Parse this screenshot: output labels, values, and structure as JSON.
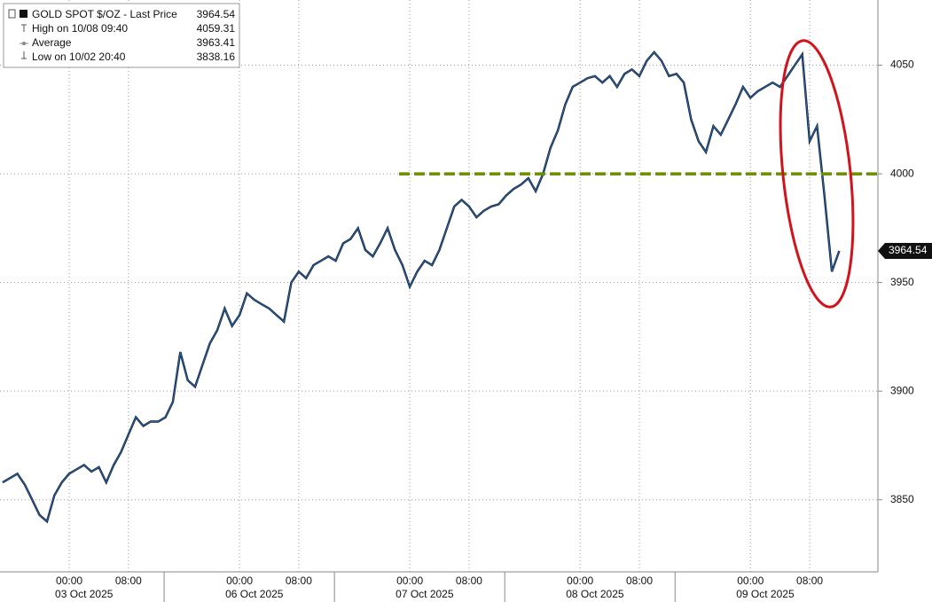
{
  "chart_data": {
    "type": "line",
    "legend": [
      {
        "label": "GOLD SPOT $/OZ - Last Price",
        "value": 3964.54
      },
      {
        "label": "High on 10/08 09:40",
        "value": 4059.31
      },
      {
        "label": "Average",
        "value": 3963.41
      },
      {
        "label": "Low on 10/02 20:40",
        "value": 3838.16
      }
    ],
    "x": [
      "10/02 14:00",
      "10/02 15:00",
      "10/02 16:00",
      "10/02 18:00",
      "10/02 19:00",
      "10/02 20:00",
      "10/02 21:00",
      "10/02 22:00",
      "10/02 23:00",
      "10/03 00:00",
      "10/03 01:00",
      "10/03 02:00",
      "10/03 03:00",
      "10/03 04:00",
      "10/03 05:00",
      "10/03 06:00",
      "10/03 07:00",
      "10/03 08:00",
      "10/03 09:00",
      "10/03 10:00",
      "10/03 11:00",
      "10/03 12:00",
      "10/03 13:00",
      "10/03 14:00",
      "10/03 15:00",
      "10/03 16:00",
      "10/05 18:00",
      "10/05 19:00",
      "10/05 20:00",
      "10/05 21:00",
      "10/05 22:00",
      "10/05 23:00",
      "10/06 00:00",
      "10/06 01:00",
      "10/06 02:00",
      "10/06 03:00",
      "10/06 04:00",
      "10/06 05:00",
      "10/06 06:00",
      "10/06 07:00",
      "10/06 08:00",
      "10/06 09:00",
      "10/06 10:00",
      "10/06 11:00",
      "10/06 12:00",
      "10/06 13:00",
      "10/06 14:00",
      "10/06 15:00",
      "10/06 16:00",
      "10/06 18:00",
      "10/06 19:00",
      "10/06 20:00",
      "10/06 21:00",
      "10/06 22:00",
      "10/06 23:00",
      "10/07 00:00",
      "10/07 01:00",
      "10/07 02:00",
      "10/07 03:00",
      "10/07 04:00",
      "10/07 05:00",
      "10/07 06:00",
      "10/07 07:00",
      "10/07 08:00",
      "10/07 09:00",
      "10/07 10:00",
      "10/07 11:00",
      "10/07 12:00",
      "10/07 13:00",
      "10/07 14:00",
      "10/07 15:00",
      "10/07 16:00",
      "10/07 18:00",
      "10/07 19:00",
      "10/07 20:00",
      "10/07 21:00",
      "10/07 22:00",
      "10/07 23:00",
      "10/08 00:00",
      "10/08 01:00",
      "10/08 02:00",
      "10/08 03:00",
      "10/08 04:00",
      "10/08 05:00",
      "10/08 06:00",
      "10/08 07:00",
      "10/08 08:00",
      "10/08 09:00",
      "10/08 10:00",
      "10/08 11:00",
      "10/08 12:00",
      "10/08 13:00",
      "10/08 14:00",
      "10/08 15:00",
      "10/08 16:00",
      "10/08 18:00",
      "10/08 19:00",
      "10/08 20:00",
      "10/08 21:00",
      "10/08 22:00",
      "10/08 23:00",
      "10/09 00:00",
      "10/09 01:00",
      "10/09 02:00",
      "10/09 03:00",
      "10/09 04:00",
      "10/09 05:00",
      "10/09 06:00",
      "10/09 07:00",
      "10/09 08:00",
      "10/09 09:00",
      "10/09 10:00",
      "10/09 11:00",
      "10/09 12:00"
    ],
    "series": [
      {
        "color": "#2463b0",
        "values": [
          3858,
          3860,
          3862,
          3857,
          3850,
          3843,
          3840,
          3852,
          3858,
          3862,
          3864,
          3866,
          3863,
          3865,
          3858,
          3866,
          3872,
          3880,
          3888,
          3884,
          3886,
          3886,
          3888,
          3895,
          3918,
          3905,
          3902,
          3912,
          3922,
          3928,
          3938,
          3930,
          3935,
          3945,
          3942,
          3940,
          3938,
          3935,
          3932,
          3950,
          3955,
          3952,
          3958,
          3960,
          3962,
          3960,
          3968,
          3970,
          3975,
          3965,
          3962,
          3968,
          3975,
          3965,
          3958,
          3948,
          3955,
          3960,
          3958,
          3965,
          3975,
          3985,
          3988,
          3985,
          3980,
          3983,
          3985,
          3986,
          3990,
          3993,
          3995,
          3998,
          3992,
          4000,
          4012,
          4020,
          4032,
          4040,
          4042,
          4044,
          4045,
          4042,
          4045,
          4040,
          4046,
          4048,
          4045,
          4052,
          4056,
          4052,
          4045,
          4046,
          4042,
          4025,
          4015,
          4010,
          4022,
          4018,
          4025,
          4032,
          4040,
          4035,
          4038,
          4040,
          4042,
          4040,
          4045,
          4050,
          4055,
          4015,
          4022,
          3990,
          3955,
          3964.54
        ]
      }
    ],
    "xticks": [
      {
        "value": "10/03 00:00",
        "label": "00:00"
      },
      {
        "value": "10/03 08:00",
        "label": "08:00"
      },
      {
        "value": "10/06 00:00",
        "label": "00:00"
      },
      {
        "value": "10/06 08:00",
        "label": "08:00"
      },
      {
        "value": "10/07 00:00",
        "label": "00:00"
      },
      {
        "value": "10/07 08:00",
        "label": "08:00"
      },
      {
        "value": "10/08 00:00",
        "label": "00:00"
      },
      {
        "value": "10/08 08:00",
        "label": "08:00"
      },
      {
        "value": "10/09 00:00",
        "label": "00:00"
      },
      {
        "value": "10/09 08:00",
        "label": "08:00"
      }
    ],
    "x_date_labels": [
      {
        "value": "10/03 00:00",
        "label": "03 Oct 2025"
      },
      {
        "value": "10/06 00:00",
        "label": "06 Oct 2025"
      },
      {
        "value": "10/07 00:00",
        "label": "07 Oct 2025"
      },
      {
        "value": "10/08 00:00",
        "label": "08 Oct 2025"
      },
      {
        "value": "10/09 00:00",
        "label": "09 Oct 2025"
      }
    ],
    "ylim": [
      3825,
      4080
    ],
    "yticks": [
      3850,
      3900,
      3950,
      4000,
      4050
    ],
    "reference_line": {
      "value": 4000,
      "color": "#6b8e00"
    },
    "grid": true
  }
}
